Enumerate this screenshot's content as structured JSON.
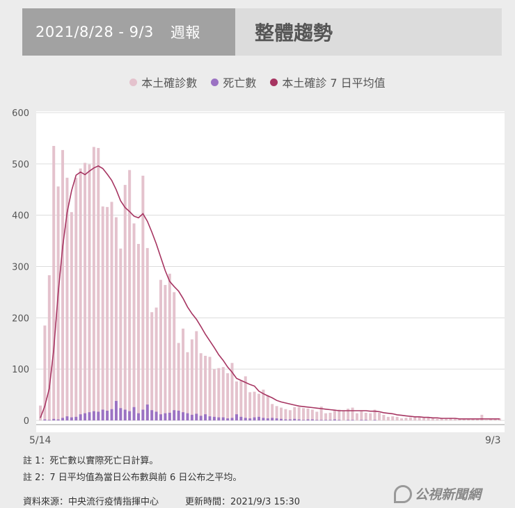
{
  "header": {
    "date_range": "2021/8/28 - 9/3",
    "week_label": "週報",
    "title": "整體趨勢"
  },
  "legend": [
    {
      "label": "本土確診數",
      "color": "#e4c2cd"
    },
    {
      "label": "死亡數",
      "color": "#9b72c3"
    },
    {
      "label": "本土確診 7 日平均值",
      "color": "#a63461"
    }
  ],
  "chart_data": {
    "type": "bar",
    "x_start_label": "5/14",
    "x_end_label": "9/3",
    "xlabel": "",
    "ylabel": "",
    "ylim": [
      0,
      600
    ],
    "yticks": [
      0,
      100,
      200,
      300,
      400,
      500,
      600
    ],
    "grid": true,
    "series": [
      {
        "name": "本土確診數",
        "kind": "bar",
        "color": "#e4c2cd",
        "values": [
          29,
          185,
          283,
          535,
          456,
          527,
          473,
          406,
          473,
          491,
          502,
          499,
          533,
          531,
          417,
          416,
          426,
          396,
          335,
          459,
          488,
          384,
          344,
          477,
          336,
          211,
          220,
          274,
          264,
          286,
          250,
          151,
          179,
          133,
          158,
          174,
          131,
          126,
          124,
          100,
          102,
          104,
          92,
          112,
          76,
          78,
          86,
          55,
          56,
          52,
          60,
          49,
          32,
          28,
          25,
          22,
          20,
          26,
          26,
          24,
          23,
          21,
          17,
          27,
          14,
          15,
          21,
          21,
          19,
          23,
          25,
          14,
          18,
          15,
          14,
          21,
          15,
          11,
          7,
          8,
          7,
          4,
          5,
          6,
          7,
          6,
          5,
          6,
          4,
          3,
          4,
          3,
          5,
          3,
          3,
          4,
          2,
          3,
          2,
          11,
          1,
          4,
          2,
          4
        ]
      },
      {
        "name": "死亡數",
        "kind": "bar",
        "color": "#9b72c3",
        "values": [
          0,
          2,
          1,
          3,
          2,
          5,
          8,
          6,
          7,
          12,
          14,
          16,
          18,
          17,
          21,
          19,
          22,
          38,
          24,
          21,
          18,
          26,
          14,
          21,
          31,
          20,
          17,
          12,
          14,
          15,
          20,
          19,
          16,
          14,
          11,
          13,
          9,
          12,
          8,
          7,
          6,
          6,
          4,
          5,
          12,
          7,
          5,
          4,
          6,
          7,
          5,
          4,
          5,
          4,
          3,
          2,
          2,
          3,
          2,
          1,
          2,
          2,
          1,
          1,
          1,
          1,
          2,
          1,
          0,
          1,
          1,
          0,
          1,
          1,
          0,
          1,
          0,
          0,
          0,
          0,
          0,
          0,
          0,
          0,
          0,
          0,
          0,
          0,
          0,
          0,
          0,
          0,
          0,
          0,
          0,
          0,
          0,
          0,
          0,
          0,
          0,
          0,
          0,
          0
        ]
      },
      {
        "name": "本土確診 7 日平均值",
        "kind": "line",
        "color": "#a63461",
        "values": [
          5,
          28,
          62,
          138,
          248,
          338,
          405,
          448,
          478,
          484,
          479,
          486,
          492,
          496,
          491,
          480,
          468,
          450,
          428,
          415,
          407,
          398,
          395,
          403,
          388,
          367,
          344,
          318,
          292,
          271,
          261,
          252,
          238,
          221,
          208,
          197,
          183,
          168,
          155,
          142,
          128,
          117,
          104,
          94,
          82,
          78,
          74,
          70,
          67,
          57,
          52,
          48,
          44,
          39,
          36,
          34,
          32,
          30,
          28,
          27,
          26,
          25,
          24,
          23,
          22,
          21,
          20,
          19,
          19,
          19,
          19,
          19,
          19,
          19,
          18,
          18,
          17,
          15,
          14,
          13,
          11,
          10,
          9,
          8,
          7,
          7,
          6,
          6,
          5,
          5,
          4,
          4,
          4,
          4,
          3,
          3,
          3,
          3,
          3,
          3,
          3,
          3,
          3,
          3
        ]
      }
    ]
  },
  "notes": [
    "註 1：死亡數以實際死亡日計算。",
    "註 2：7 日平均值為當日公布數與前 6 日公布之平均。"
  ],
  "footer": {
    "source": "資料來源：中央流行疫情指揮中心",
    "updated": "更新時間：2021/9/3 15:30"
  },
  "logo_text": "公視新聞網"
}
